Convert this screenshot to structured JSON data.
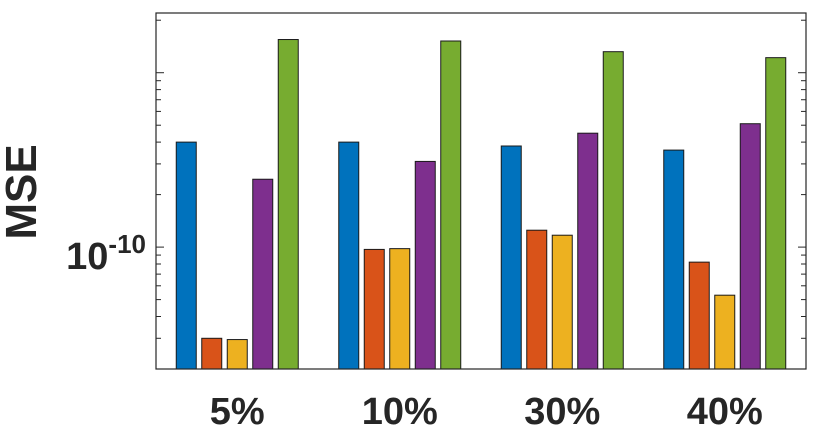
{
  "chart_data": {
    "type": "bar",
    "title": "",
    "xlabel": "",
    "ylabel": "MSE",
    "y_scale": "log",
    "ylim": [
      2e-11,
      2.2e-09
    ],
    "ytick_label": {
      "base": "10",
      "exponent": "-10",
      "value": 1e-10
    },
    "grid": false,
    "legend": "none",
    "categories": [
      "5%",
      "10%",
      "30%",
      "40%"
    ],
    "series": [
      {
        "color": "#0072BD",
        "values": [
          4e-10,
          4e-10,
          3.8e-10,
          3.6e-10
        ]
      },
      {
        "color": "#D95319",
        "values": [
          3e-11,
          9.7e-11,
          1.25e-10,
          8.2e-11
        ]
      },
      {
        "color": "#EDB120",
        "values": [
          2.95e-11,
          9.8e-11,
          1.17e-10,
          5.3e-11
        ]
      },
      {
        "color": "#7E2F8E",
        "values": [
          2.45e-10,
          3.1e-10,
          4.5e-10,
          5.1e-10
        ]
      },
      {
        "color": "#77AC30",
        "values": [
          1.55e-09,
          1.52e-09,
          1.32e-09,
          1.22e-09
        ]
      }
    ]
  }
}
